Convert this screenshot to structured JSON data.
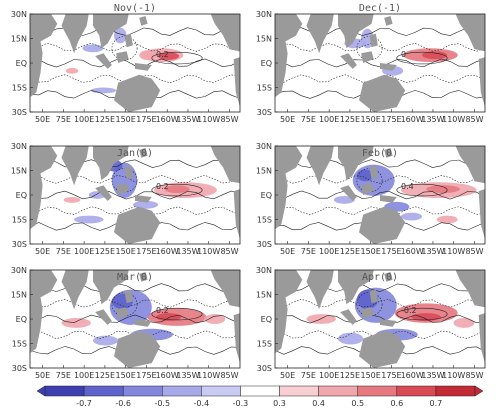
{
  "panels": [
    {
      "title": "Nov(-1)",
      "title_pos": "above"
    },
    {
      "title": "Dec(-1)",
      "title_pos": "above"
    },
    {
      "title": "Jan(0)",
      "title_pos": "inside"
    },
    {
      "title": "Feb(0)",
      "title_pos": "inside"
    },
    {
      "title": "Mar(0)",
      "title_pos": "inside"
    },
    {
      "title": "Apr(0)",
      "title_pos": "inside"
    }
  ],
  "lat_labels": [
    "30N",
    "15N",
    "EQ",
    "15S",
    "30S"
  ],
  "lon_labels": [
    "50E",
    "75E",
    "100E",
    "125E",
    "150E",
    "175E",
    "160W",
    "135W",
    "110W",
    "85W"
  ],
  "colorbar": {
    "labels": [
      "-0.7",
      "-0.6",
      "-0.5",
      "-0.4",
      "-0.3",
      "0.3",
      "0.4",
      "0.5",
      "0.6",
      "0.7"
    ],
    "colors": [
      "#3c3fb0",
      "#5d63cb",
      "#8286dc",
      "#a7a9e8",
      "#c9cbf2",
      "#ffffff",
      "#f7cfd3",
      "#f0a6ad",
      "#e67880",
      "#d84a56",
      "#c22a36"
    ]
  },
  "contour_labels": [
    "0.2",
    "0",
    "0.2",
    "0.4",
    "0.2",
    "-0.2"
  ]
}
